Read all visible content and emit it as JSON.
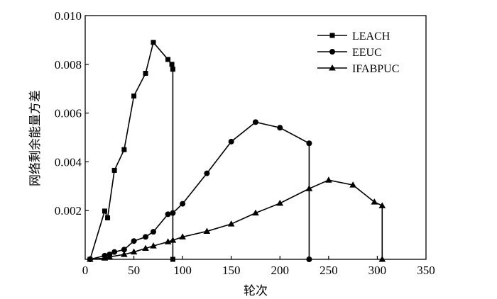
{
  "chart_data": {
    "type": "line",
    "title": "",
    "xlabel": "轮次",
    "ylabel": "网络剩余能量方差",
    "xlim": [
      0,
      350
    ],
    "ylim": [
      0,
      0.01
    ],
    "x_ticks": [
      "0",
      "50",
      "100",
      "150",
      "200",
      "250",
      "300",
      "350"
    ],
    "y_ticks": [
      "0.002",
      "0.004",
      "0.006",
      "0.008",
      "0.010"
    ],
    "grid": false,
    "legend_position": "top-right",
    "series": [
      {
        "name": "LEACH",
        "marker": "square",
        "color": "#000000",
        "points": [
          [
            5,
            0.0
          ],
          [
            20,
            0.00198
          ],
          [
            23,
            0.0017
          ],
          [
            30,
            0.00365
          ],
          [
            40,
            0.0045
          ],
          [
            50,
            0.0067
          ],
          [
            62,
            0.00763
          ],
          [
            70,
            0.0089
          ],
          [
            85,
            0.0082
          ],
          [
            89,
            0.008
          ],
          [
            90,
            0.0078
          ],
          [
            90,
            0.0
          ]
        ]
      },
      {
        "name": "EEUC",
        "marker": "circle",
        "color": "#000000",
        "points": [
          [
            5,
            0.0
          ],
          [
            20,
            0.00015
          ],
          [
            25,
            0.0002
          ],
          [
            30,
            0.0003
          ],
          [
            40,
            0.0004
          ],
          [
            50,
            0.00075
          ],
          [
            62,
            0.00092
          ],
          [
            70,
            0.00113
          ],
          [
            85,
            0.00185
          ],
          [
            90,
            0.0019
          ],
          [
            100,
            0.00228
          ],
          [
            125,
            0.00353
          ],
          [
            150,
            0.00483
          ],
          [
            175,
            0.00563
          ],
          [
            200,
            0.0054
          ],
          [
            230,
            0.00476
          ],
          [
            230,
            0.0
          ]
        ]
      },
      {
        "name": "IFABPUC",
        "marker": "triangle",
        "color": "#000000",
        "points": [
          [
            5,
            0.0
          ],
          [
            20,
            5e-05
          ],
          [
            25,
            0.0001
          ],
          [
            40,
            0.0002
          ],
          [
            50,
            0.0003
          ],
          [
            62,
            0.00045
          ],
          [
            70,
            0.00055
          ],
          [
            85,
            0.00072
          ],
          [
            90,
            0.00078
          ],
          [
            100,
            0.00092
          ],
          [
            125,
            0.00115
          ],
          [
            150,
            0.00145
          ],
          [
            175,
            0.0019
          ],
          [
            200,
            0.0023
          ],
          [
            230,
            0.0029
          ],
          [
            250,
            0.00325
          ],
          [
            275,
            0.00305
          ],
          [
            297,
            0.00235
          ],
          [
            305,
            0.0022
          ],
          [
            305,
            0.0
          ]
        ]
      }
    ]
  }
}
